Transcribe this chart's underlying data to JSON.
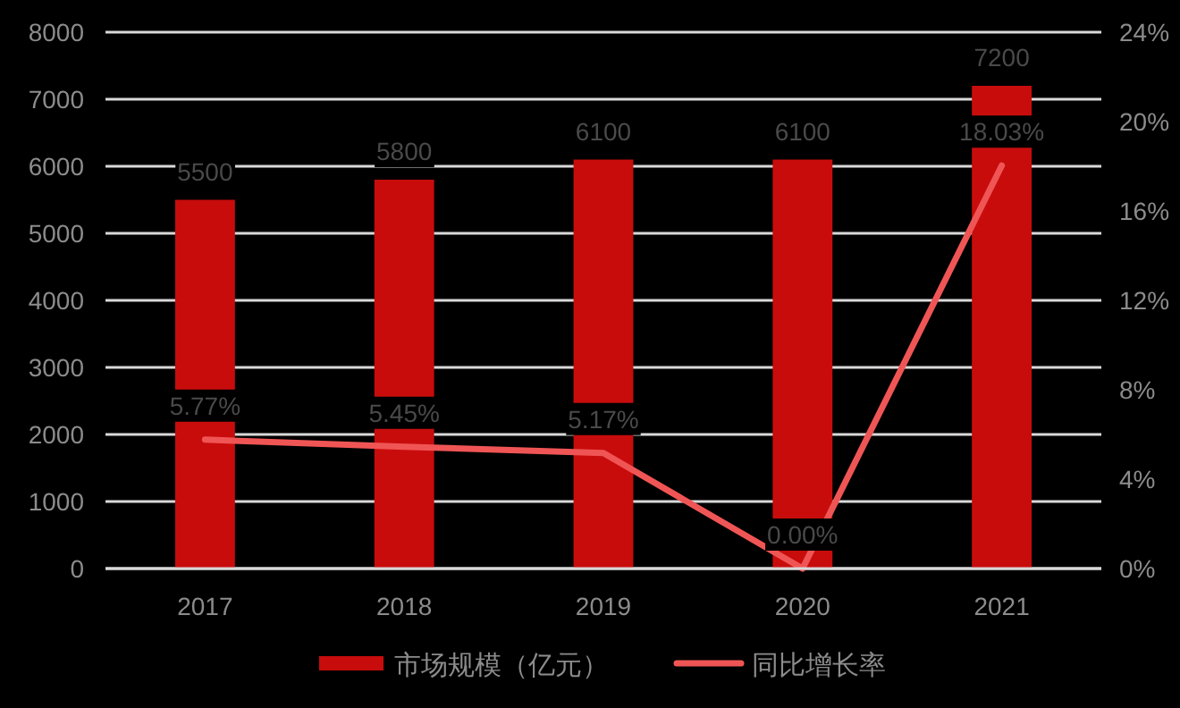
{
  "chart_data": {
    "type": "bar",
    "categories": [
      "2017",
      "2018",
      "2019",
      "2020",
      "2021"
    ],
    "series": [
      {
        "name": "市场规模（亿元）",
        "color": "#c80c0c",
        "values": [
          5500,
          5800,
          6100,
          6100,
          7200
        ],
        "data_labels": true
      },
      {
        "name": "同比增长率",
        "type": "line",
        "axis": "y2",
        "color": "#f05555",
        "values": [
          5.77,
          5.45,
          5.17,
          0.0,
          18.03
        ],
        "value_labels": [
          "5.77%",
          "5.45%",
          "5.17%",
          "0.00%",
          "18.03%"
        ]
      }
    ],
    "ylim": [
      0,
      8000
    ],
    "yticks": [
      0,
      1000,
      2000,
      3000,
      4000,
      5000,
      6000,
      7000,
      8000
    ],
    "y2lim": [
      0,
      24
    ],
    "y2ticks": [
      {
        "value": 0,
        "label": "0%"
      },
      {
        "value": 4,
        "label": "4%"
      },
      {
        "value": 8,
        "label": "8%"
      },
      {
        "value": 12,
        "label": "12%"
      },
      {
        "value": 16,
        "label": "16%"
      },
      {
        "value": 20,
        "label": "20%"
      },
      {
        "value": 24,
        "label": "24%"
      }
    ],
    "grid": "y",
    "legend": "bottom",
    "marker": "none",
    "line_style": "solid"
  }
}
